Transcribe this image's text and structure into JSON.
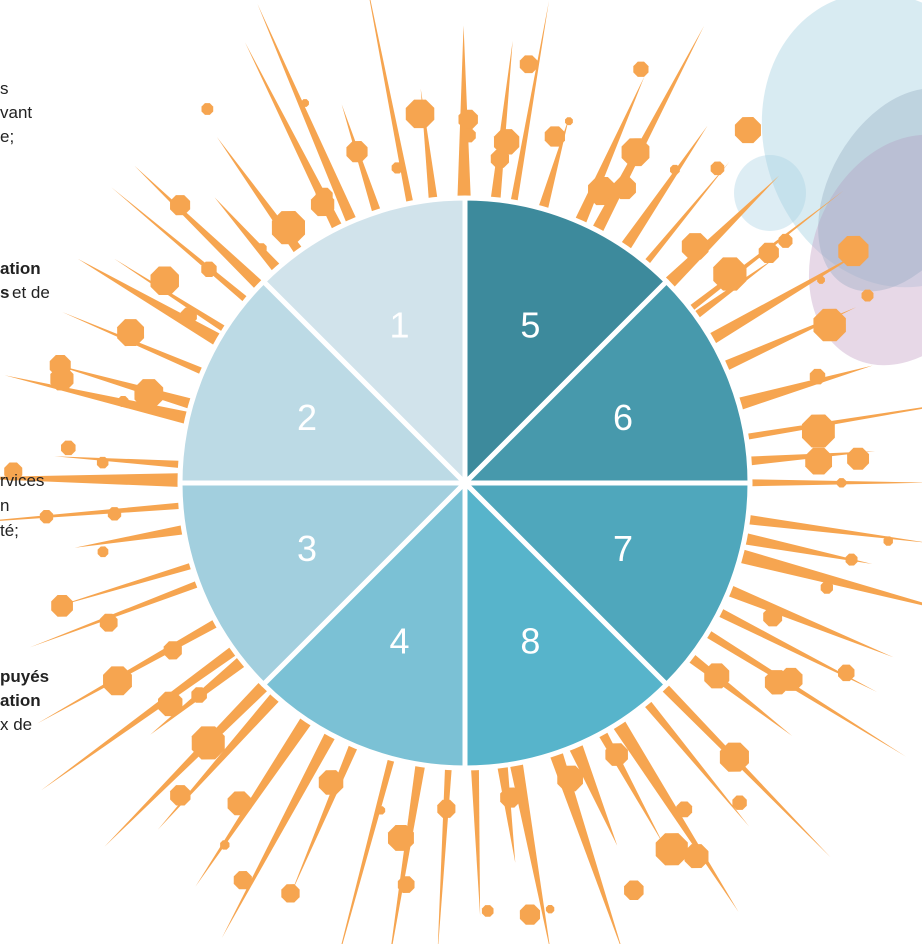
{
  "colors": {
    "burst": "#F6A550",
    "background": "#FFFFFF",
    "segment_divider": "#FFFFFF",
    "blob_blue": "#A9D3E3",
    "blob_mauve": "#C9A9C9",
    "blob_slate": "#9FAFC3"
  },
  "wheel": {
    "segments": [
      {
        "label": "1",
        "color": "#D1E3EB"
      },
      {
        "label": "2",
        "color": "#BCDAE5"
      },
      {
        "label": "3",
        "color": "#A2CFDE"
      },
      {
        "label": "4",
        "color": "#7BC1D5"
      },
      {
        "label": "5",
        "color": "#3D8A9C"
      },
      {
        "label": "6",
        "color": "#4799AC"
      },
      {
        "label": "7",
        "color": "#4FA7BC"
      },
      {
        "label": "8",
        "color": "#57B4CB"
      }
    ]
  },
  "left_text": [
    {
      "text": "s",
      "bold": false
    },
    {
      "text": "vant",
      "bold": false
    },
    {
      "text": "e;",
      "bold": false
    },
    {
      "text": "ation",
      "bold": true
    },
    {
      "text": "s",
      "bold": true
    },
    {
      "text": " et de",
      "bold": false
    },
    {
      "text": "rvices",
      "bold": false
    },
    {
      "text": "n",
      "bold": false
    },
    {
      "text": "té;",
      "bold": false
    },
    {
      "text": "puyés",
      "bold": true
    },
    {
      "text": "ation",
      "bold": true
    },
    {
      "text": "x de",
      "bold": false
    }
  ]
}
